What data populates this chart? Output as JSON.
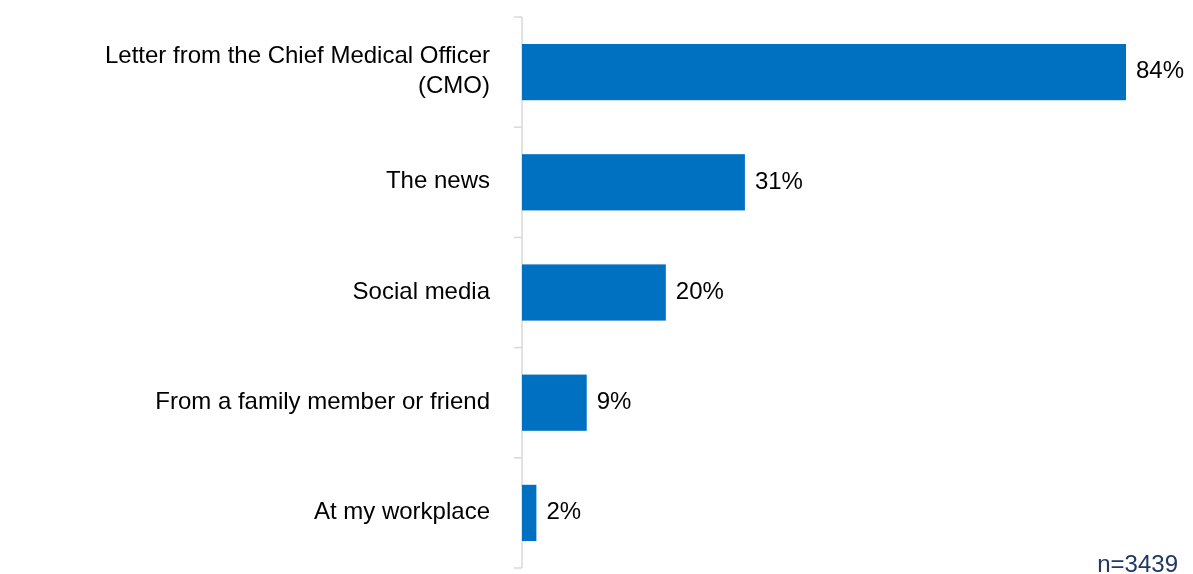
{
  "chart_data": {
    "type": "bar",
    "orientation": "horizontal",
    "categories": [
      "Letter from the Chief Medical Officer (CMO)",
      "The news",
      "Social media",
      "From a family member or friend",
      "At my workplace"
    ],
    "values": [
      84,
      31,
      20,
      9,
      2
    ],
    "value_labels": [
      "84%",
      "31%",
      "20%",
      "9%",
      "2%"
    ],
    "color": "#0070c0",
    "annotations": [
      "n=3439"
    ]
  }
}
